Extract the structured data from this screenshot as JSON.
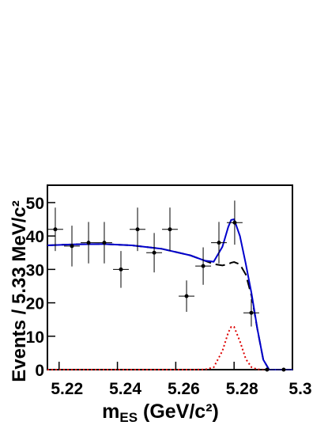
{
  "chart_data": {
    "type": "errorbar",
    "x_label": "m",
    "x_label_sub": "ES",
    "x_label_unit": " (GeV/c²)",
    "y_label": "Events / 5.33 MeV/c²",
    "xlim": [
      5.216,
      5.3
    ],
    "ylim": [
      0,
      55.2
    ],
    "xticks": [
      5.22,
      5.24,
      5.26,
      5.28,
      5.3
    ],
    "yticks": [
      0,
      10,
      20,
      30,
      40,
      50
    ],
    "x": [
      5.2187,
      5.2244,
      5.2301,
      5.2355,
      5.2412,
      5.2469,
      5.2526,
      5.258,
      5.2637,
      5.2694,
      5.2748,
      5.2802,
      5.2859,
      5.2913,
      5.297
    ],
    "values": [
      42,
      37,
      38,
      38,
      30,
      42,
      35,
      42,
      22,
      31,
      38,
      44,
      17,
      0,
      0
    ],
    "errors": [
      6.5,
      6.1,
      6.2,
      6.2,
      5.5,
      6.5,
      5.9,
      6.5,
      4.7,
      5.6,
      6.2,
      6.6,
      4.1,
      0,
      0
    ],
    "x_error": 0.0027,
    "color": "#000000",
    "fit_x": [
      5.216,
      5.225,
      5.235,
      5.245,
      5.255,
      5.265,
      5.27,
      5.273,
      5.276,
      5.278,
      5.279,
      5.28,
      5.282,
      5.284,
      5.286,
      5.288,
      5.29,
      5.292,
      5.296,
      5.3
    ],
    "fit_series": [
      {
        "color": "#0000cc",
        "dash": "none",
        "values": [
          37.2,
          37.5,
          37.6,
          37.2,
          36.2,
          34.2,
          32.6,
          32.3,
          36.8,
          42.7,
          44.8,
          45,
          40,
          31.7,
          22.7,
          12.1,
          3,
          0,
          0,
          0
        ]
      },
      {
        "color": "#000000",
        "dash": "12 6",
        "values": [
          37.2,
          37.5,
          37.6,
          37.2,
          36.2,
          34.2,
          32.6,
          31.6,
          31.2,
          31.6,
          32,
          32.2,
          31.5,
          28.5,
          22,
          12,
          3,
          0,
          0,
          0
        ]
      },
      {
        "color": "#dd0000",
        "dash": "2 3",
        "values": [
          0,
          0,
          0,
          0,
          0,
          0,
          0.03,
          0.7,
          5.6,
          11.1,
          12.8,
          12.8,
          8.5,
          3.2,
          0.7,
          0.09,
          0,
          0,
          0,
          0
        ]
      }
    ]
  }
}
